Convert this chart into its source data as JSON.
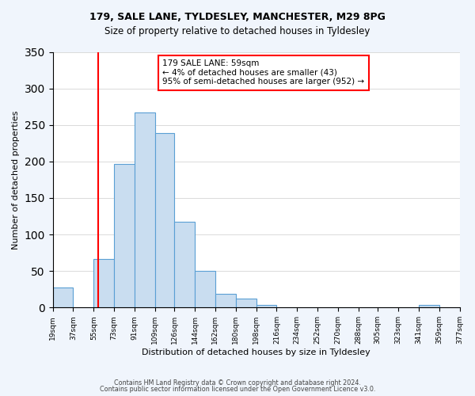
{
  "title1": "179, SALE LANE, TYLDESLEY, MANCHESTER, M29 8PG",
  "title2": "Size of property relative to detached houses in Tyldesley",
  "xlabel": "Distribution of detached houses by size in Tyldesley",
  "ylabel": "Number of detached properties",
  "bar_color": "#c9ddf0",
  "bar_edge_color": "#5a9fd4",
  "red_line_x": 59,
  "bin_edges": [
    19,
    37,
    55,
    73,
    91,
    109,
    126,
    144,
    162,
    180,
    198,
    216,
    234,
    252,
    270,
    288,
    305,
    323,
    341,
    359,
    377
  ],
  "bin_labels": [
    "19sqm",
    "37sqm",
    "55sqm",
    "73sqm",
    "91sqm",
    "109sqm",
    "126sqm",
    "144sqm",
    "162sqm",
    "180sqm",
    "198sqm",
    "216sqm",
    "234sqm",
    "252sqm",
    "270sqm",
    "288sqm",
    "305sqm",
    "323sqm",
    "341sqm",
    "359sqm",
    "377sqm"
  ],
  "bar_heights": [
    28,
    0,
    66,
    197,
    267,
    239,
    117,
    50,
    19,
    12,
    4,
    0,
    0,
    0,
    0,
    0,
    0,
    0,
    4,
    0
  ],
  "ylim": [
    0,
    350
  ],
  "yticks": [
    0,
    50,
    100,
    150,
    200,
    250,
    300,
    350
  ],
  "annotation_title": "179 SALE LANE: 59sqm",
  "annotation_line1": "← 4% of detached houses are smaller (43)",
  "annotation_line2": "95% of semi-detached houses are larger (952) →",
  "footnote1": "Contains HM Land Registry data © Crown copyright and database right 2024.",
  "footnote2": "Contains public sector information licensed under the Open Government Licence v3.0.",
  "bg_color": "#f0f5fc",
  "plot_bg_color": "#ffffff"
}
